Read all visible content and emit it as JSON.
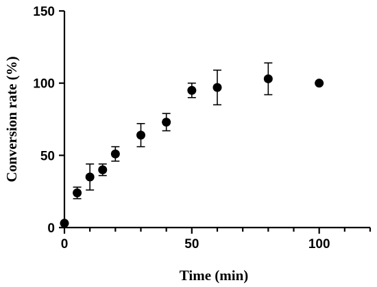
{
  "chart_data": {
    "type": "scatter",
    "title": "",
    "xlabel": "Time (min)",
    "ylabel": "Conversion rate (%)",
    "xlim": [
      0,
      120
    ],
    "ylim": [
      0,
      150
    ],
    "x_ticks": [
      0,
      50,
      100
    ],
    "y_ticks": [
      0,
      50,
      100,
      150
    ],
    "x_minor_step": 10,
    "grid": false,
    "legend": "none",
    "series": [
      {
        "x": [
          0,
          5,
          10,
          15,
          20,
          30,
          40,
          50,
          60,
          80,
          100
        ],
        "y": [
          3,
          24,
          35,
          40,
          51,
          64,
          73,
          95,
          97,
          103,
          100
        ],
        "error": [
          0,
          4,
          9,
          4,
          5,
          8,
          6,
          5,
          12,
          11,
          0
        ],
        "color": "#000000",
        "marker": "circle"
      }
    ]
  }
}
